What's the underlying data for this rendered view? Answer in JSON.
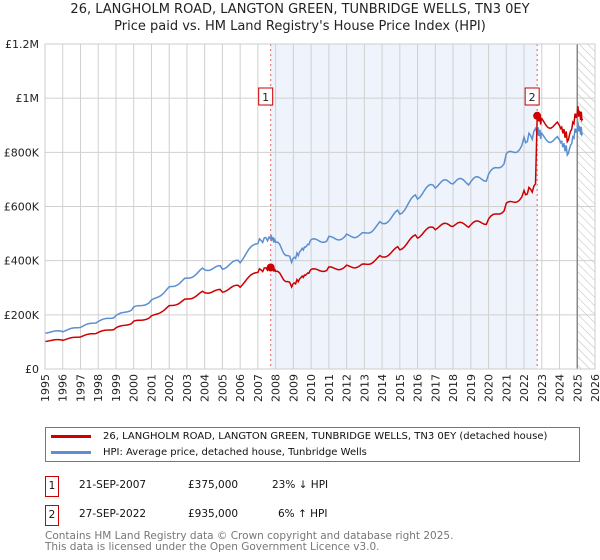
{
  "title_line1": "26, LANGHOLM ROAD, LANGTON GREEN, TUNBRIDGE WELLS, TN3 0EY",
  "title_line2": "Price paid vs. HM Land Registry's House Price Index (HPI)",
  "chart_data": {
    "type": "line",
    "title": "26, LANGHOLM ROAD, LANGTON GREEN, TUNBRIDGE WELLS, TN3 0EY — Price paid vs. HM Land Registry's House Price Index (HPI)",
    "xlim": [
      1995,
      2026
    ],
    "ylim": [
      0,
      1200000
    ],
    "x_ticks": [
      "1995",
      "1996",
      "1997",
      "1998",
      "1999",
      "2000",
      "2001",
      "2002",
      "2003",
      "2004",
      "2005",
      "2006",
      "2007",
      "2008",
      "2009",
      "2010",
      "2011",
      "2012",
      "2013",
      "2014",
      "2015",
      "2016",
      "2017",
      "2018",
      "2019",
      "2020",
      "2021",
      "2022",
      "2023",
      "2024",
      "2025",
      "2026"
    ],
    "y_ticks": [
      {
        "v": 0,
        "label": "£0"
      },
      {
        "v": 200000,
        "label": "£200K"
      },
      {
        "v": 400000,
        "label": "£400K"
      },
      {
        "v": 600000,
        "label": "£600K"
      },
      {
        "v": 800000,
        "label": "£800K"
      },
      {
        "v": 1000000,
        "label": "£1M"
      },
      {
        "v": 1200000,
        "label": "£1.2M"
      }
    ],
    "hpi": {
      "name": "HPI: Average price, detached house, Tunbridge Wells",
      "color": "#5b8fd0",
      "x": [
        1995,
        1996,
        1997,
        1998,
        1999,
        2000,
        2001,
        2002,
        2003,
        2004,
        2005,
        2006,
        2007,
        2007.72,
        2008,
        2008.9,
        2009.5,
        2010,
        2011,
        2012,
        2013,
        2014,
        2015,
        2016,
        2017,
        2018,
        2019,
        2020,
        2021,
        2022,
        2022.74,
        2023,
        2024,
        2024.5,
        2025,
        2025.3
      ],
      "y": [
        135000,
        140000,
        155000,
        175000,
        195000,
        225000,
        250000,
        300000,
        335000,
        370000,
        375000,
        400000,
        470000,
        487000,
        470000,
        400000,
        440000,
        470000,
        480000,
        490000,
        500000,
        540000,
        580000,
        640000,
        680000,
        690000,
        690000,
        710000,
        780000,
        840000,
        880000,
        860000,
        845000,
        800000,
        900000,
        870000
      ]
    },
    "property": {
      "name": "26, LANGHOLM ROAD, LANGTON GREEN, TUNBRIDGE WELLS, TN3 0EY (detached house)",
      "color": "#cc0000"
    },
    "sales": [
      {
        "id": "1",
        "x": 2007.72,
        "date": "21-SEP-2007",
        "price": 375000,
        "price_label": "£375,000",
        "hpi_diff": "23% ↓ HPI"
      },
      {
        "id": "2",
        "x": 2022.74,
        "date": "27-SEP-2022",
        "price": 935000,
        "price_label": "£935,000",
        "hpi_diff": "6% ↑ HPI"
      }
    ],
    "forecast_hatch_from": 2025.0
  },
  "legend": {
    "property": "26, LANGHOLM ROAD, LANGTON GREEN, TUNBRIDGE WELLS, TN3 0EY (detached house)",
    "hpi": "HPI: Average price, detached house, Tunbridge Wells"
  },
  "footer": {
    "line1": "Contains HM Land Registry data © Crown copyright and database right 2025.",
    "line2": "This data is licensed under the Open Government Licence v3.0."
  }
}
